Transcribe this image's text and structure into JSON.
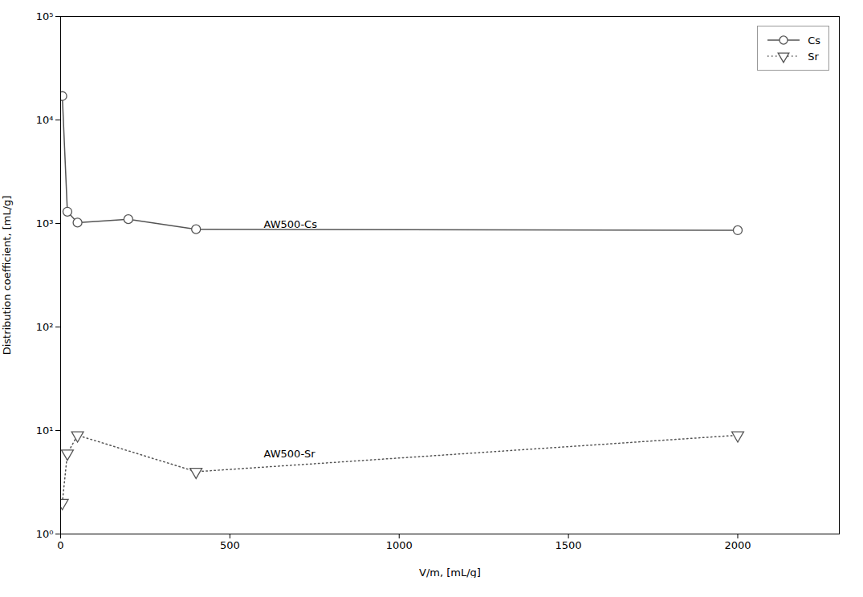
{
  "chart_data": {
    "type": "line",
    "xlabel": "V/m, [mL/g]",
    "ylabel": "Distribution coefficient, [mL/g]",
    "log": "y",
    "grid": false,
    "legend": "upper right",
    "xlim": [
      0,
      2300
    ],
    "xticks": [
      0,
      500,
      1000,
      1500,
      2000
    ],
    "ylim": [
      1,
      100000
    ],
    "yticks": [
      {
        "value": 1,
        "label": "10⁰"
      },
      {
        "value": 10,
        "label": "10¹"
      },
      {
        "value": 100,
        "label": "10²"
      },
      {
        "value": 1000,
        "label": "10³"
      },
      {
        "value": 10000,
        "label": "10⁴"
      },
      {
        "value": 100000,
        "label": "10⁵"
      }
    ],
    "series": [
      {
        "name": "Cs",
        "color": "#555555",
        "marker": "circle",
        "line_style": "solid",
        "x": [
          5,
          20,
          50,
          200,
          400,
          2000
        ],
        "values": [
          17000,
          1300,
          1020,
          1100,
          880,
          860
        ]
      },
      {
        "name": "Sr",
        "color": "#555555",
        "marker": "triangle_down",
        "line_style": "dotted",
        "x": [
          5,
          20,
          50,
          400,
          2000
        ],
        "values": [
          2.0,
          6.0,
          9.0,
          4.0,
          9.0
        ]
      }
    ],
    "annotations": [
      {
        "text": "AW500-Cs",
        "x": 600,
        "y": 900
      },
      {
        "text": "AW500-Sr",
        "x": 600,
        "y": 5.5
      }
    ]
  }
}
